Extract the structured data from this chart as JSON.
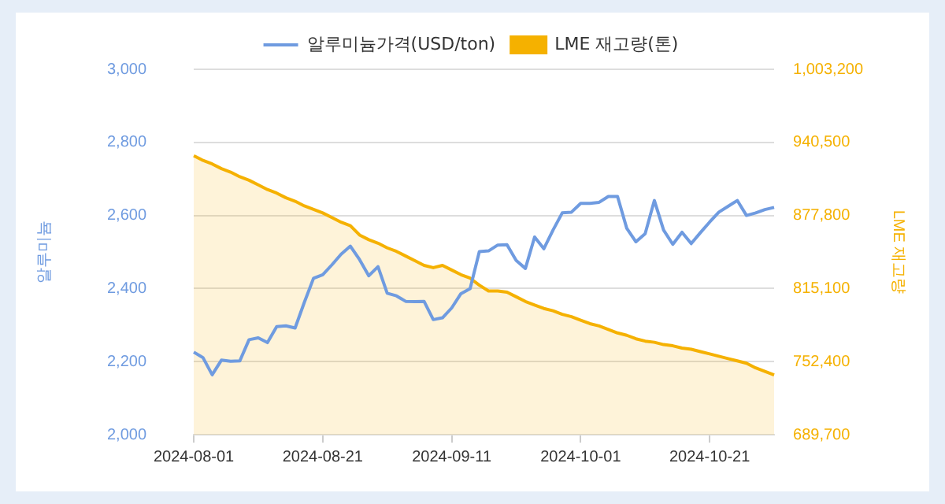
{
  "chart_data": {
    "type": "line",
    "categories": [
      "2024-08-01",
      null,
      null,
      null,
      null,
      null,
      null,
      null,
      null,
      null,
      null,
      null,
      null,
      null,
      "2024-08-21",
      null,
      null,
      null,
      null,
      null,
      null,
      null,
      null,
      null,
      null,
      null,
      null,
      null,
      "2024-09-11",
      null,
      null,
      null,
      null,
      null,
      null,
      null,
      null,
      null,
      null,
      null,
      null,
      null,
      "2024-10-01",
      null,
      null,
      null,
      null,
      null,
      null,
      null,
      null,
      null,
      null,
      null,
      null,
      null,
      "2024-10-21",
      null,
      null,
      null,
      null,
      null,
      null,
      null
    ],
    "series": [
      {
        "name": "알루미늄가격(USD/ton)",
        "type": "line",
        "color": "#6f9be0",
        "values": [
          2226,
          2211,
          2164,
          2204,
          2201,
          2202,
          2260,
          2265,
          2252,
          2296,
          2298,
          2292,
          2362,
          2428,
          2438,
          2465,
          2494,
          2516,
          2479,
          2435,
          2460,
          2387,
          2380,
          2365,
          2364,
          2365,
          2315,
          2320,
          2347,
          2386,
          2400,
          2501,
          2503,
          2519,
          2520,
          2477,
          2455,
          2541,
          2509,
          2560,
          2607,
          2609,
          2633,
          2633,
          2636,
          2652,
          2652,
          2565,
          2528,
          2550,
          2641,
          2560,
          2521,
          2554,
          2523,
          2553,
          2582,
          2609,
          2625,
          2641,
          2600,
          2607,
          2616,
          2622
        ]
      },
      {
        "name": "LME 재고량(톤)",
        "type": "area",
        "axis": "y2",
        "color": "#f5b100",
        "values": [
          929000,
          925000,
          922000,
          918000,
          915000,
          911000,
          908000,
          904000,
          900000,
          897000,
          893000,
          890000,
          886000,
          883000,
          880000,
          876000,
          872000,
          869000,
          861000,
          857000,
          854000,
          850000,
          847000,
          843000,
          839000,
          835000,
          833000,
          835000,
          831000,
          827000,
          824000,
          818000,
          813000,
          813000,
          812000,
          808000,
          804000,
          801000,
          798000,
          796000,
          793000,
          791000,
          788000,
          785000,
          783000,
          780000,
          777000,
          775000,
          772000,
          770000,
          769000,
          767000,
          766000,
          764000,
          763000,
          761000,
          759000,
          757000,
          755000,
          753000,
          751000,
          747000,
          744000,
          741000
        ]
      }
    ],
    "ylabel": "알루미늄",
    "y2label": "LME 재고량",
    "ylim": [
      2000,
      3000
    ],
    "yticks": [
      {
        "value": 2000,
        "label": "2,000"
      },
      {
        "value": 2200,
        "label": "2,200"
      },
      {
        "value": 2400,
        "label": "2,400"
      },
      {
        "value": 2600,
        "label": "2,600"
      },
      {
        "value": 2800,
        "label": "2,800"
      },
      {
        "value": 3000,
        "label": "3,000"
      }
    ],
    "y2lim": [
      689700,
      1003200
    ],
    "y2ticks": [
      {
        "value": 689700,
        "label": "689,700"
      },
      {
        "value": 752400,
        "label": "752,400"
      },
      {
        "value": 815100,
        "label": "815,100"
      },
      {
        "value": 877800,
        "label": "877,800"
      },
      {
        "value": 940500,
        "label": "940,500"
      },
      {
        "value": 1003200,
        "label": "1,003,200"
      }
    ],
    "grid": "y",
    "legend": "top",
    "marker": "none"
  }
}
